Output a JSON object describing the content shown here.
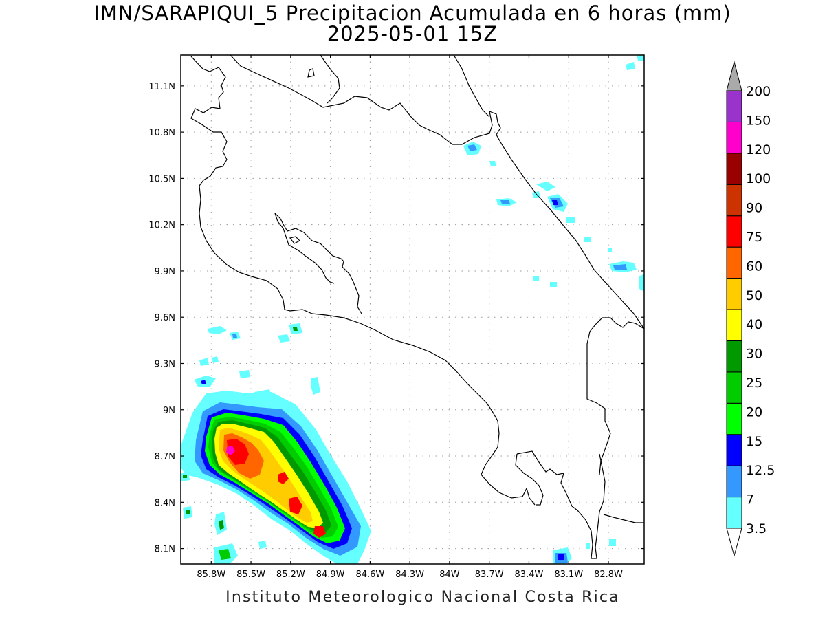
{
  "title": {
    "line1": "IMN/SARAPIQUI_5 Precipitacion Acumulada en 6 horas (mm)",
    "line2": "2025-05-01 15Z"
  },
  "credit": "Instituto Meteorologico Nacional Costa Rica",
  "map": {
    "lon_range": [
      -86.03,
      -82.53
    ],
    "lat_range": [
      8.0,
      11.3
    ],
    "lat_ticks": [
      {
        "value": 11.1,
        "label": "11.1N"
      },
      {
        "value": 10.8,
        "label": "10.8N"
      },
      {
        "value": 10.5,
        "label": "10.5N"
      },
      {
        "value": 10.2,
        "label": "10.2N"
      },
      {
        "value": 9.9,
        "label": "9.9N"
      },
      {
        "value": 9.6,
        "label": "9.6N"
      },
      {
        "value": 9.3,
        "label": "9.3N"
      },
      {
        "value": 9.0,
        "label": "9N"
      },
      {
        "value": 8.7,
        "label": "8.7N"
      },
      {
        "value": 8.4,
        "label": "8.4N"
      },
      {
        "value": 8.1,
        "label": "8.1N"
      }
    ],
    "lon_ticks": [
      {
        "value": -85.8,
        "label": "85.8W"
      },
      {
        "value": -85.5,
        "label": "85.5W"
      },
      {
        "value": -85.2,
        "label": "85.2W"
      },
      {
        "value": -84.9,
        "label": "84.9W"
      },
      {
        "value": -84.6,
        "label": "84.6W"
      },
      {
        "value": -84.3,
        "label": "84.3W"
      },
      {
        "value": -84.0,
        "label": "84W"
      },
      {
        "value": -83.7,
        "label": "83.7W"
      },
      {
        "value": -83.4,
        "label": "83.4W"
      },
      {
        "value": -83.1,
        "label": "83.1W"
      },
      {
        "value": -82.8,
        "label": "82.8W"
      }
    ],
    "grid": true
  },
  "colorbar": {
    "bins": [
      {
        "label": "3.5",
        "color": "#66ffff"
      },
      {
        "label": "7",
        "color": "#3399ff"
      },
      {
        "label": "12.5",
        "color": "#0000ff"
      },
      {
        "label": "15",
        "color": "#00ff00"
      },
      {
        "label": "20",
        "color": "#00cc00"
      },
      {
        "label": "25",
        "color": "#009900"
      },
      {
        "label": "30",
        "color": "#ffff00"
      },
      {
        "label": "40",
        "color": "#ffcc00"
      },
      {
        "label": "50",
        "color": "#ff6600"
      },
      {
        "label": "60",
        "color": "#ff0000"
      },
      {
        "label": "75",
        "color": "#cc3300"
      },
      {
        "label": "90",
        "color": "#990000"
      },
      {
        "label": "100",
        "color": "#ff00cc"
      },
      {
        "label": "120",
        "color": "#9933cc"
      },
      {
        "label": "150",
        "color": "#f5f5f5"
      },
      {
        "label": "200",
        "color": "#aaaaaa"
      }
    ]
  }
}
